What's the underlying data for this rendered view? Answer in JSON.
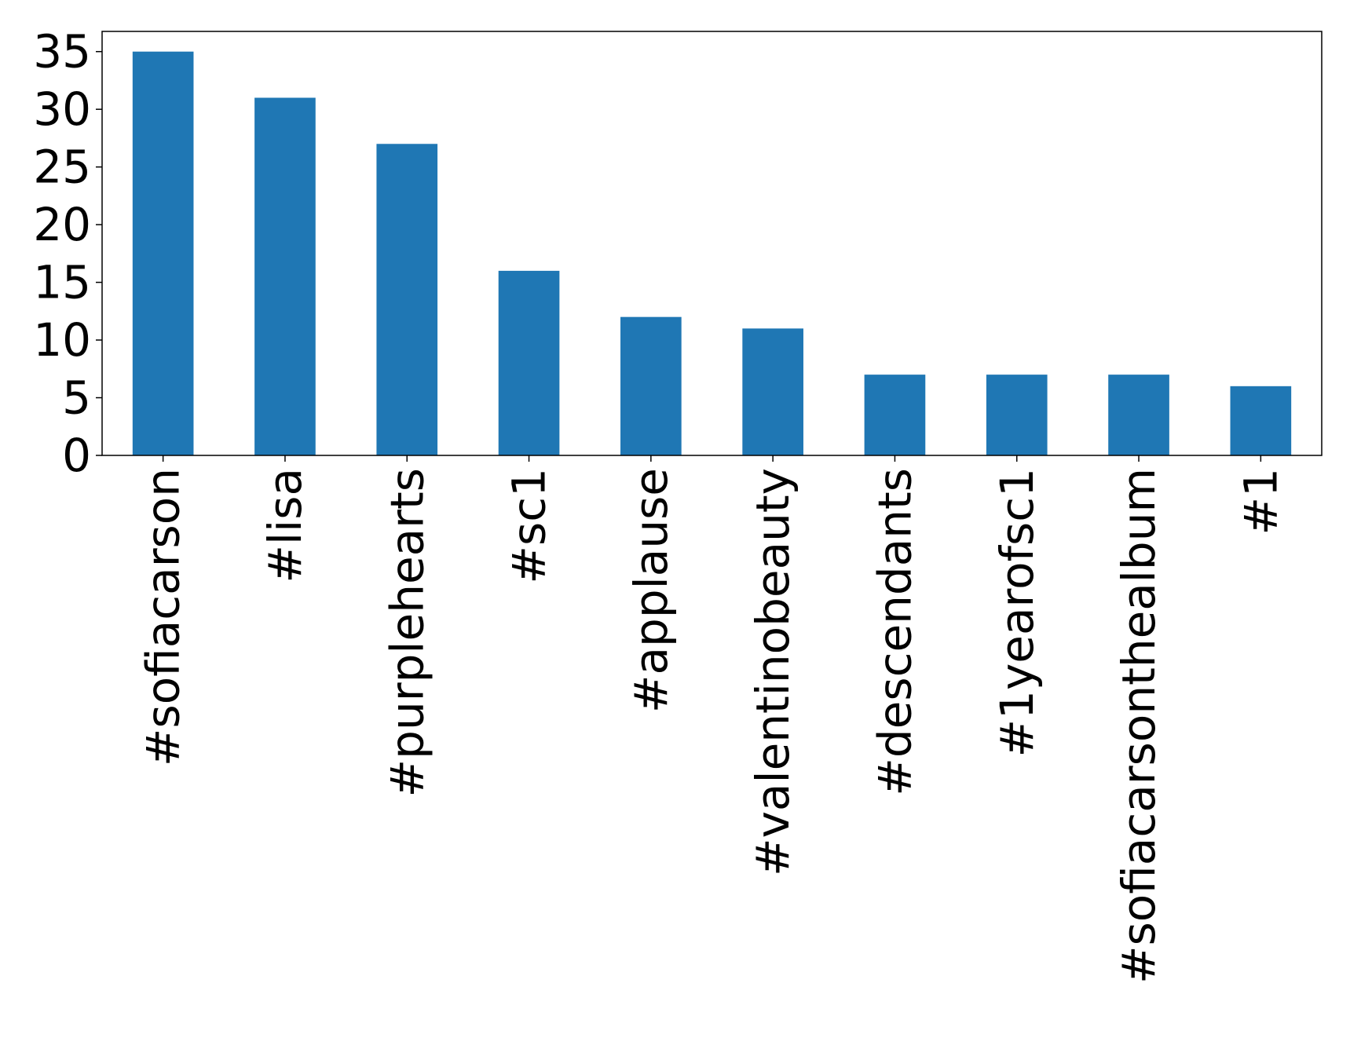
{
  "chart_data": {
    "type": "bar",
    "categories": [
      "#sofiacarson",
      "#lisa",
      "#purplehearts",
      "#sc1",
      "#applause",
      "#valentinobeauty",
      "#descendants",
      "#1yearofsc1",
      "#sofiacarsonthealbum",
      "#1"
    ],
    "values": [
      35,
      31,
      27,
      16,
      12,
      11,
      7,
      7,
      7,
      6
    ],
    "title": "",
    "xlabel": "",
    "ylabel": "",
    "ylim": [
      0,
      36.75
    ],
    "yticks": [
      0,
      5,
      10,
      15,
      20,
      25,
      30,
      35
    ],
    "bar_color": "#1f77b4",
    "grid": false,
    "legend": "none"
  }
}
